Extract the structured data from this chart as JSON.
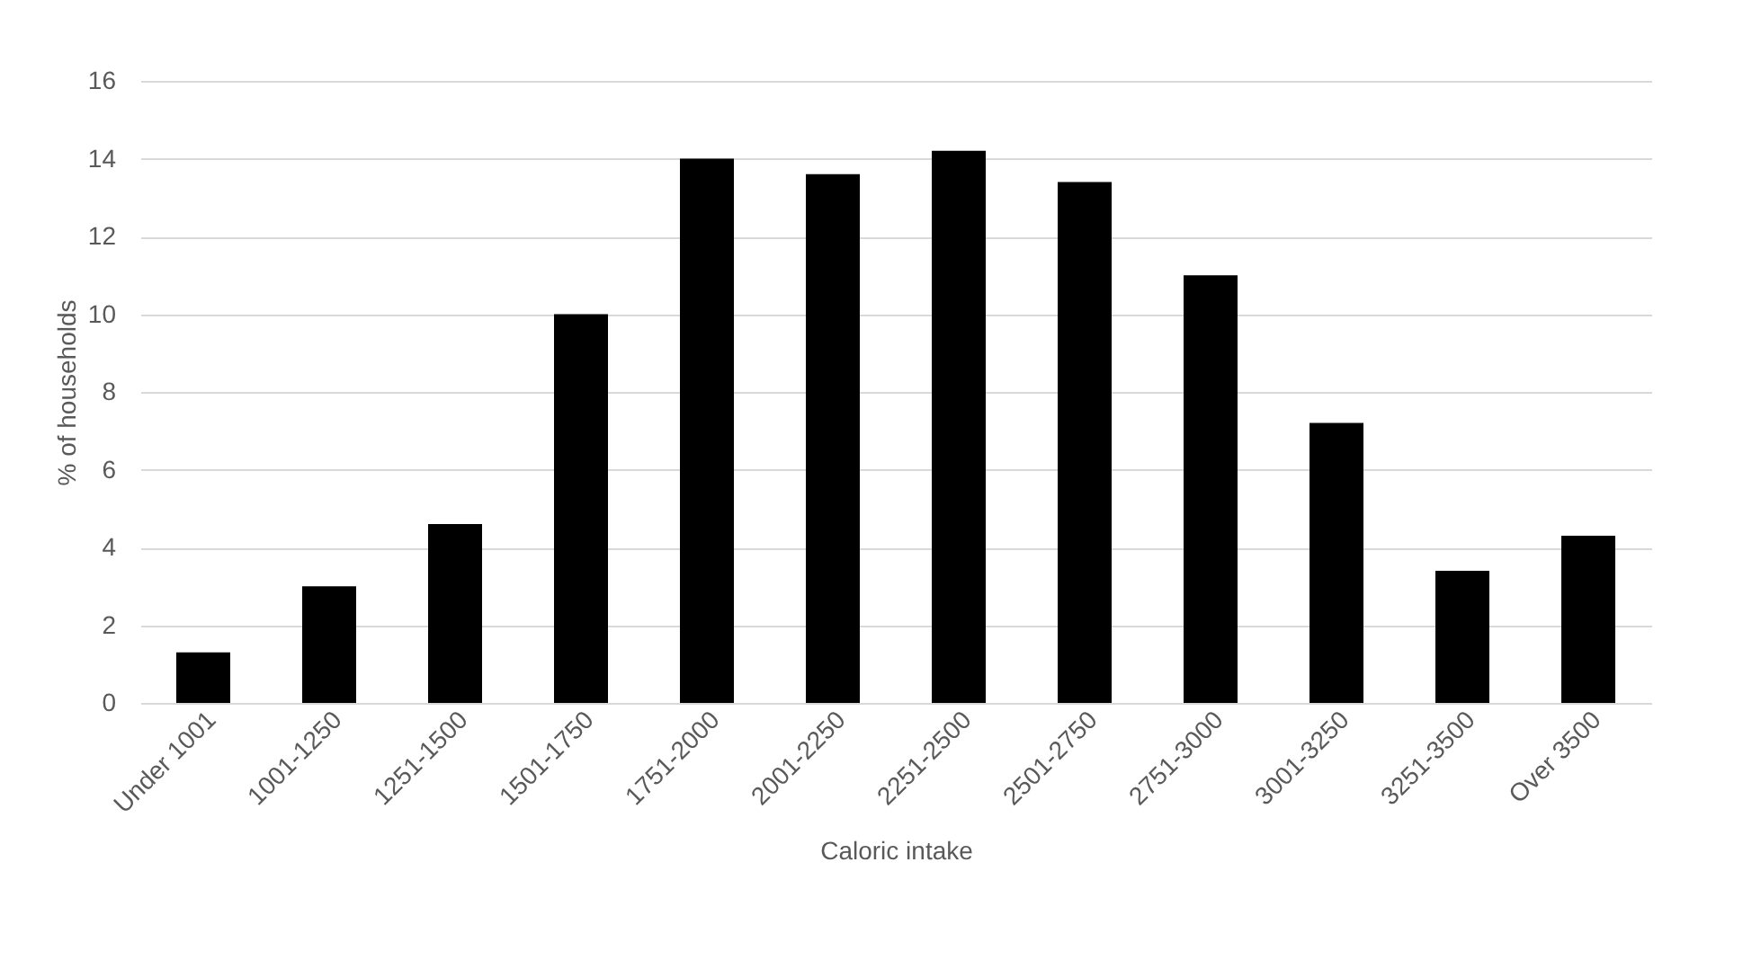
{
  "chart_data": {
    "type": "bar",
    "xlabel": "Caloric intake",
    "ylabel": "% of households",
    "categories": [
      "Under 1001",
      "1001-1250",
      "1251-1500",
      "1501-1750",
      "1751-2000",
      "2001-2250",
      "2251-2500",
      "2501-2750",
      "2751-3000",
      "3001-3250",
      "3251-3500",
      "Over 3500"
    ],
    "values": [
      1.3,
      3.0,
      4.6,
      10.0,
      14.0,
      13.6,
      14.2,
      13.4,
      11.0,
      7.2,
      3.4,
      4.3
    ],
    "color": "#000000",
    "ylim": [
      0,
      16
    ],
    "yticks": [
      0,
      2,
      4,
      6,
      8,
      10,
      12,
      14,
      16
    ],
    "grid": "y"
  }
}
